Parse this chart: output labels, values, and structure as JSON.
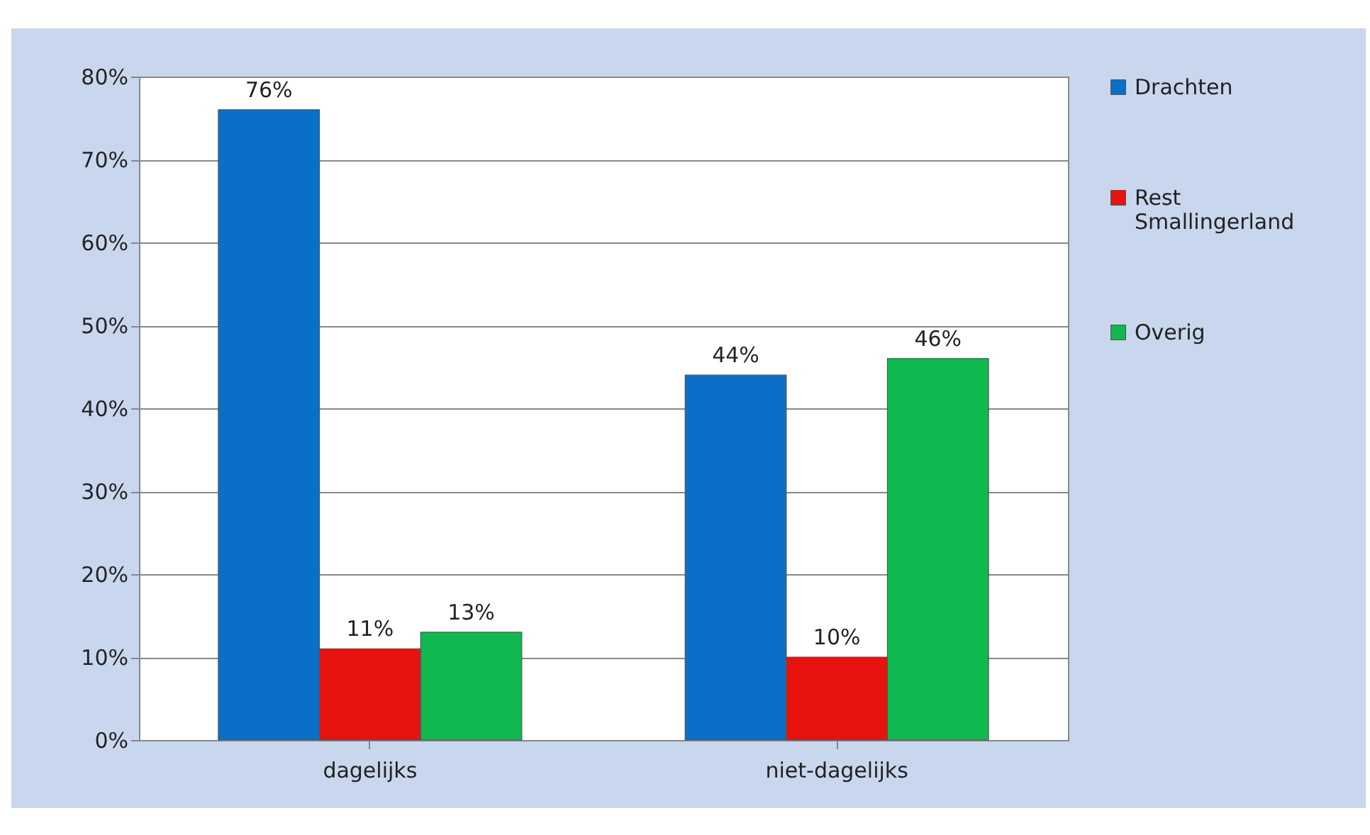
{
  "chart_data": {
    "type": "bar",
    "categories": [
      "dagelijks",
      "niet-dagelijks"
    ],
    "series": [
      {
        "name": "Drachten",
        "color": "#0a6fc6",
        "values": [
          76,
          44
        ]
      },
      {
        "name": "Rest Smallingerland",
        "color": "#e8120f",
        "values": [
          11,
          10
        ]
      },
      {
        "name": "Overig",
        "color": "#10b850",
        "values": [
          13,
          46
        ]
      }
    ],
    "ylim": [
      0,
      80
    ],
    "yticks": [
      {
        "value": 0,
        "label": "0%"
      },
      {
        "value": 10,
        "label": "10%"
      },
      {
        "value": 20,
        "label": "20%"
      },
      {
        "value": 30,
        "label": "30%"
      },
      {
        "value": 40,
        "label": "40%"
      },
      {
        "value": 50,
        "label": "50%"
      },
      {
        "value": 60,
        "label": "60%"
      },
      {
        "value": 70,
        "label": "70%"
      },
      {
        "value": 80,
        "label": "80%"
      }
    ],
    "value_labels": [
      [
        "76%",
        "44%"
      ],
      [
        "11%",
        "10%"
      ],
      [
        "13%",
        "46%"
      ]
    ],
    "grid": "y",
    "legend": "right"
  }
}
